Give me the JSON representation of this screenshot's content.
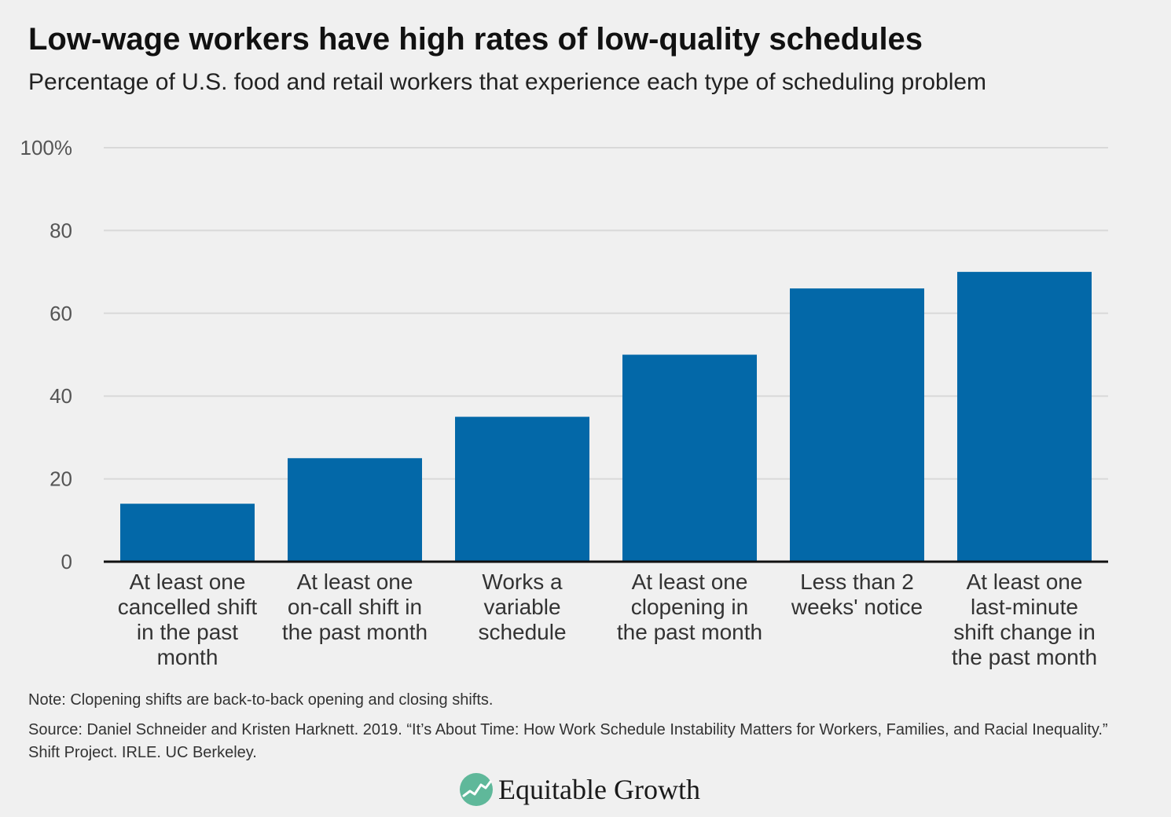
{
  "header": {
    "title": "Low-wage workers have high rates of low-quality schedules",
    "subtitle": "Percentage of U.S. food and retail workers that experience each type of scheduling problem"
  },
  "chart_data": {
    "type": "bar",
    "categories": [
      [
        "At least one",
        "cancelled shift",
        "in the past",
        "month"
      ],
      [
        "At least one",
        "on-call shift in",
        "the past month"
      ],
      [
        "Works a",
        "variable",
        "schedule"
      ],
      [
        "At least one",
        "clopening in",
        "the past month"
      ],
      [
        "Less than 2",
        "weeks' notice"
      ],
      [
        "At least one",
        "last-minute",
        "shift change in",
        "the past month"
      ]
    ],
    "values": [
      14,
      25,
      35,
      50,
      66,
      70
    ],
    "ylim": [
      0,
      100
    ],
    "yticks": [
      0,
      20,
      40,
      60,
      80,
      100
    ],
    "ytick_labels": [
      "0",
      "20",
      "40",
      "60",
      "80",
      "100%"
    ],
    "grid": true,
    "bar_color": "#0368a8"
  },
  "footer": {
    "note": "Note: Clopening shifts are back-to-back opening and closing shifts.",
    "source": "Source: Daniel Schneider and Kristen Harknett. 2019. “It’s About Time: How Work Schedule Instability Matters for Workers, Families, and Racial Inequality.” Shift Project. IRLE. UC Berkeley.",
    "logo_text": "Equitable Growth",
    "logo_icon": "trend-line-icon",
    "logo_color": "#5fb89a"
  }
}
